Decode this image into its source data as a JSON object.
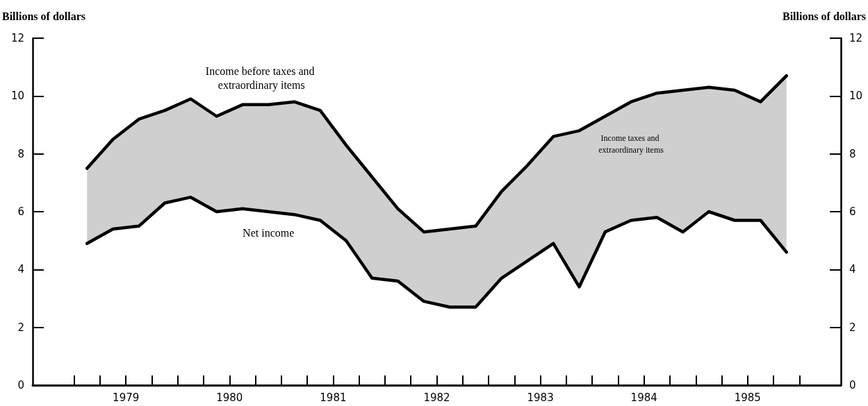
{
  "chart_data": {
    "type": "line",
    "ylabel": "Billions of dollars",
    "y2label": "Billions of dollars",
    "x": [
      1979.125,
      1979.375,
      1979.625,
      1979.875,
      1980.125,
      1980.375,
      1980.625,
      1980.875,
      1981.125,
      1981.375,
      1981.625,
      1981.875,
      1982.125,
      1982.375,
      1982.625,
      1982.875,
      1983.125,
      1983.375,
      1983.625,
      1983.875,
      1984.125,
      1984.375,
      1984.625,
      1984.875,
      1985.125,
      1985.375,
      1985.625,
      1985.875
    ],
    "series": [
      {
        "name": "Net income",
        "color": "#000000",
        "values": [
          4.9,
          5.4,
          5.5,
          6.3,
          6.5,
          6.0,
          6.1,
          6.0,
          5.9,
          5.7,
          5.0,
          3.7,
          3.6,
          2.9,
          2.7,
          2.7,
          3.7,
          4.3,
          4.9,
          3.4,
          5.3,
          5.7,
          5.8,
          5.3,
          6.0,
          5.7,
          5.7,
          4.6
        ]
      },
      {
        "name": "Income before taxes and extraordinary items",
        "color": "#000000",
        "values": [
          7.5,
          8.5,
          9.2,
          9.5,
          9.9,
          9.3,
          9.7,
          9.7,
          9.8,
          9.5,
          8.3,
          7.2,
          6.1,
          5.3,
          5.4,
          5.5,
          6.7,
          7.6,
          8.6,
          8.8,
          9.3,
          9.8,
          10.1,
          10.2,
          10.3,
          10.2,
          9.8,
          10.7
        ],
        "lower": [
          4.9,
          5.4,
          5.5,
          6.3,
          6.5,
          6.0,
          6.1,
          6.0,
          5.9,
          5.7,
          5.0,
          3.7,
          3.6,
          2.9,
          2.7,
          2.7,
          3.7,
          4.3,
          4.9,
          3.4,
          5.3,
          5.7,
          5.8,
          5.3,
          6.0,
          5.7,
          5.7,
          4.6
        ],
        "upper": [
          7.5,
          8.5,
          9.2,
          9.5,
          9.9,
          9.3,
          9.7,
          9.7,
          9.8,
          9.5,
          8.3,
          7.2,
          6.1,
          5.3,
          5.4,
          5.5,
          6.7,
          7.6,
          8.6,
          8.8,
          9.3,
          9.8,
          10.1,
          10.2,
          10.3,
          10.2,
          9.8,
          10.7
        ]
      }
    ],
    "xlim": [
      1978.6,
      1986.4
    ],
    "xticks": [
      {
        "value": 1979,
        "label": null
      },
      {
        "value": 1979.25,
        "label": null
      },
      {
        "value": 1979.5,
        "label": "1979"
      },
      {
        "value": 1979.75,
        "label": null
      },
      {
        "value": 1980,
        "label": null
      },
      {
        "value": 1980.25,
        "label": null
      },
      {
        "value": 1980.5,
        "label": "1980"
      },
      {
        "value": 1980.75,
        "label": null
      },
      {
        "value": 1981,
        "label": null
      },
      {
        "value": 1981.25,
        "label": null
      },
      {
        "value": 1981.5,
        "label": "1981"
      },
      {
        "value": 1981.75,
        "label": null
      },
      {
        "value": 1982,
        "label": null
      },
      {
        "value": 1982.25,
        "label": null
      },
      {
        "value": 1982.5,
        "label": "1982"
      },
      {
        "value": 1982.75,
        "label": null
      },
      {
        "value": 1983,
        "label": null
      },
      {
        "value": 1983.25,
        "label": null
      },
      {
        "value": 1983.5,
        "label": "1983"
      },
      {
        "value": 1983.75,
        "label": null
      },
      {
        "value": 1984,
        "label": null
      },
      {
        "value": 1984.25,
        "label": null
      },
      {
        "value": 1984.5,
        "label": "1984"
      },
      {
        "value": 1984.75,
        "label": null
      },
      {
        "value": 1985,
        "label": null
      },
      {
        "value": 1985.25,
        "label": null
      },
      {
        "value": 1985.5,
        "label": "1985"
      },
      {
        "value": 1985.75,
        "label": null
      },
      {
        "value": 1986,
        "label": null
      }
    ],
    "ylim": [
      0,
      12
    ],
    "yticks": [
      0,
      2,
      4,
      6,
      8,
      10,
      12
    ],
    "y2lim": [
      0,
      12
    ],
    "y2ticks": [
      0,
      2,
      4,
      6,
      8,
      10,
      12
    ],
    "grid": false,
    "legend": false,
    "marker": "none",
    "line_style": "solid",
    "annotations": [
      "Income taxes and extraordinary items"
    ]
  }
}
